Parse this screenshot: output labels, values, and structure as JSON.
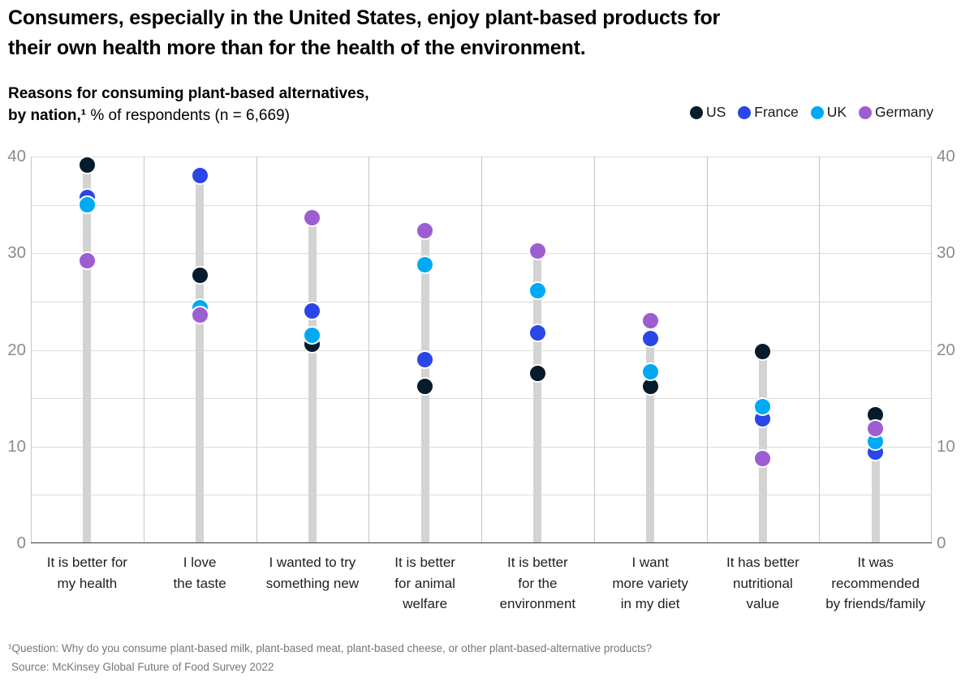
{
  "header": {
    "title_lines": [
      "Consumers, especially in the United States, enjoy plant-based products for",
      "their own health more than for the health of the environment."
    ],
    "subtitle_line1": "Reasons for consuming plant-based alternatives,",
    "subtitle_line2_bold": "by nation,¹",
    "subtitle_line2_regular": " % of respondents (n = 6,669)"
  },
  "chart_data": {
    "type": "scatter",
    "variant": "lollipop-dot-plot",
    "title": "Consumers, especially in the United States, enjoy plant-based products for their own health more than for the health of the environment.",
    "subtitle": "Reasons for consuming plant-based alternatives, by nation,¹ % of respondents (n = 6,669)",
    "categories": [
      "It is better for my health",
      "I love the taste",
      "I wanted to try something new",
      "It is better for animal welfare",
      "It is better for the environment",
      "I want more variety in my diet",
      "It has better nutritional value",
      "It was recommended by friends/family"
    ],
    "category_label_lines": [
      [
        "It is better for",
        "my health"
      ],
      [
        "I love",
        "the taste"
      ],
      [
        "I wanted to try",
        "something new"
      ],
      [
        "It is better",
        "for animal",
        "welfare"
      ],
      [
        "It is better",
        "for the",
        "environment"
      ],
      [
        "I want",
        "more variety",
        "in my diet"
      ],
      [
        "It has better",
        "nutritional",
        "value"
      ],
      [
        "It was",
        "recommended",
        "by friends/family"
      ]
    ],
    "series": [
      {
        "name": "US",
        "color": "#051c2c",
        "values": [
          39.1,
          27.7,
          20.6,
          16.2,
          17.6,
          16.2,
          19.8,
          13.3
        ]
      },
      {
        "name": "France",
        "color": "#2b46e6",
        "values": [
          35.8,
          38.0,
          24.0,
          19.0,
          21.8,
          21.2,
          12.9,
          9.4
        ]
      },
      {
        "name": "UK",
        "color": "#00a9f4",
        "values": [
          35.0,
          24.4,
          21.5,
          28.8,
          26.1,
          17.7,
          14.1,
          10.5
        ]
      },
      {
        "name": "Germany",
        "color": "#9d5ed2",
        "values": [
          29.2,
          23.6,
          33.7,
          32.3,
          30.2,
          23.0,
          8.8,
          11.9
        ]
      }
    ],
    "ylim": [
      0,
      40
    ],
    "ytick_labels": [
      40,
      30,
      20,
      10,
      0
    ],
    "gridline_step": 5,
    "grid": true,
    "legend_position": "top-right",
    "xlabel": "",
    "ylabel": ""
  },
  "footnotes": {
    "question": "¹Question: Why do you consume plant-based milk, plant-based meat, plant-based cheese, or other plant-based-alternative products?",
    "source": "Source: McKinsey Global Future of Food Survey 2022"
  }
}
